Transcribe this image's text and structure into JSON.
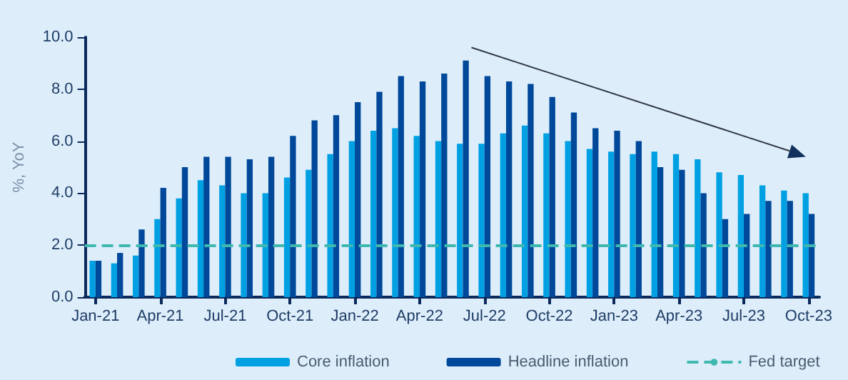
{
  "chart_data": {
    "type": "bar",
    "ylabel": "%, YoY",
    "categories": [
      "Jan-21",
      null,
      null,
      "Apr-21",
      null,
      null,
      "Jul-21",
      null,
      null,
      "Oct-21",
      null,
      null,
      "Jan-22",
      null,
      null,
      "Apr-22",
      null,
      null,
      "Jul-22",
      null,
      null,
      "Oct-22",
      null,
      null,
      "Jan-23",
      null,
      null,
      "Apr-23",
      null,
      null,
      "Jul-23",
      null,
      null,
      "Oct-23"
    ],
    "series": [
      {
        "name": "Core inflation",
        "color": "#00a0e3",
        "values": [
          1.4,
          1.3,
          1.6,
          3.0,
          3.8,
          4.5,
          4.3,
          4.0,
          4.0,
          4.6,
          4.9,
          5.5,
          6.0,
          6.4,
          6.5,
          6.2,
          6.0,
          5.9,
          5.9,
          6.3,
          6.6,
          6.3,
          6.0,
          5.7,
          5.6,
          5.5,
          5.6,
          5.5,
          5.3,
          4.8,
          4.7,
          4.3,
          4.1,
          4.0
        ]
      },
      {
        "name": "Headline inflation",
        "color": "#00489a",
        "values": [
          1.4,
          1.7,
          2.6,
          4.2,
          5.0,
          5.4,
          5.4,
          5.3,
          5.4,
          6.2,
          6.8,
          7.0,
          7.5,
          7.9,
          8.5,
          8.3,
          8.6,
          9.1,
          8.5,
          8.3,
          8.2,
          7.7,
          7.1,
          6.5,
          6.4,
          6.0,
          5.0,
          4.9,
          4.0,
          3.0,
          3.2,
          3.7,
          3.7,
          3.2
        ]
      }
    ],
    "ref_lines": [
      {
        "axis": "y",
        "value": 2,
        "label": "Fed target",
        "color": "#3fb8b0",
        "line_style": "dashed"
      }
    ],
    "ylim": [
      0,
      10
    ],
    "yticks": [
      {
        "value": 0,
        "label": "0.0"
      },
      {
        "value": 2,
        "label": "2.0"
      },
      {
        "value": 4,
        "label": "4.0"
      },
      {
        "value": 6,
        "label": "6.0"
      },
      {
        "value": 8,
        "label": "8.0"
      },
      {
        "value": 10,
        "label": "10.0"
      }
    ],
    "grid": false,
    "legend": "bottom"
  }
}
